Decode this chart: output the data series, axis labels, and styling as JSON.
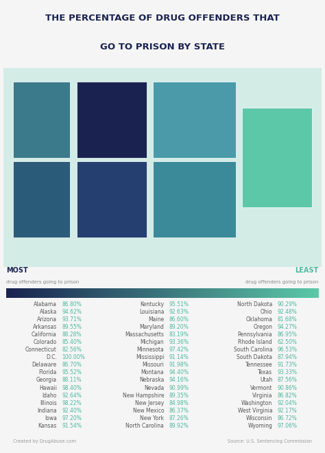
{
  "title_line1": "THE PERCENTAGE OF DRUG OFFENDERS THAT",
  "title_line2": "GO TO PRISON BY STATE",
  "background_color": "#f5f5f5",
  "title_color": "#1a2350",
  "gradient_left_color": "#1a2350",
  "gradient_right_color": "#5cc8a8",
  "most_label": "MOST",
  "least_label": "LEAST",
  "most_sub": "drug offenders going to prison",
  "least_sub": "drug offenders going to prison",
  "footer_left": "Created by DrugAbuse.com",
  "footer_right": "Source: U.S. Sentencing Commission",
  "col1": [
    [
      "Alabama",
      "86.80%"
    ],
    [
      "Alaska",
      "94.62%"
    ],
    [
      "Arizona",
      "93.71%"
    ],
    [
      "Arkansas",
      "89.55%"
    ],
    [
      "California",
      "88.28%"
    ],
    [
      "Colorado",
      "85.40%"
    ],
    [
      "Connecticut",
      "82.56%"
    ],
    [
      "D.C.",
      "100.00%"
    ],
    [
      "Delaware",
      "86.70%"
    ],
    [
      "Florida",
      "95.52%"
    ],
    [
      "Georgia",
      "88.11%"
    ],
    [
      "Hawaii",
      "98.40%"
    ],
    [
      "Idaho",
      "92.64%"
    ],
    [
      "Illinois",
      "98.22%"
    ],
    [
      "Indiana",
      "92.40%"
    ],
    [
      "Iowa",
      "97.20%"
    ],
    [
      "Kansas",
      "91.54%"
    ]
  ],
  "col2": [
    [
      "Kentucky",
      "95.51%"
    ],
    [
      "Louisiana",
      "92.63%"
    ],
    [
      "Maine",
      "86.60%"
    ],
    [
      "Maryland",
      "89.20%"
    ],
    [
      "Massachusetts",
      "83.19%"
    ],
    [
      "Michigan",
      "93.36%"
    ],
    [
      "Minnesota",
      "97.42%"
    ],
    [
      "Mississippi",
      "91.14%"
    ],
    [
      "Missouri",
      "91.98%"
    ],
    [
      "Montana",
      "94.40%"
    ],
    [
      "Nebraska",
      "94.16%"
    ],
    [
      "Nevada",
      "90.99%"
    ],
    [
      "New Hampshire",
      "89.35%"
    ],
    [
      "New Jersey",
      "84.98%"
    ],
    [
      "New Mexico",
      "86.37%"
    ],
    [
      "New York",
      "87.26%"
    ],
    [
      "North Carolina",
      "89.92%"
    ]
  ],
  "col3": [
    [
      "North Dakota",
      "90.29%"
    ],
    [
      "Ohio",
      "92.48%"
    ],
    [
      "Oklahoma",
      "81.68%"
    ],
    [
      "Oregon",
      "94.27%"
    ],
    [
      "Pennsylvania",
      "86.95%"
    ],
    [
      "Rhode Island",
      "62.50%"
    ],
    [
      "South Carolina",
      "96.53%"
    ],
    [
      "South Dakota",
      "87.94%"
    ],
    [
      "Tennessee",
      "91.73%"
    ],
    [
      "Texas",
      "93.33%"
    ],
    [
      "Utah",
      "87.56%"
    ],
    [
      "Vermont",
      "90.86%"
    ],
    [
      "Virginia",
      "86.82%"
    ],
    [
      "Washington",
      "92.04%"
    ],
    [
      "West Virginia",
      "92.17%"
    ],
    [
      "Wisconsin",
      "86.72%"
    ],
    [
      "Wyoming",
      "97.06%"
    ]
  ],
  "state_color": "#555555",
  "pct_color": "#4db89e"
}
